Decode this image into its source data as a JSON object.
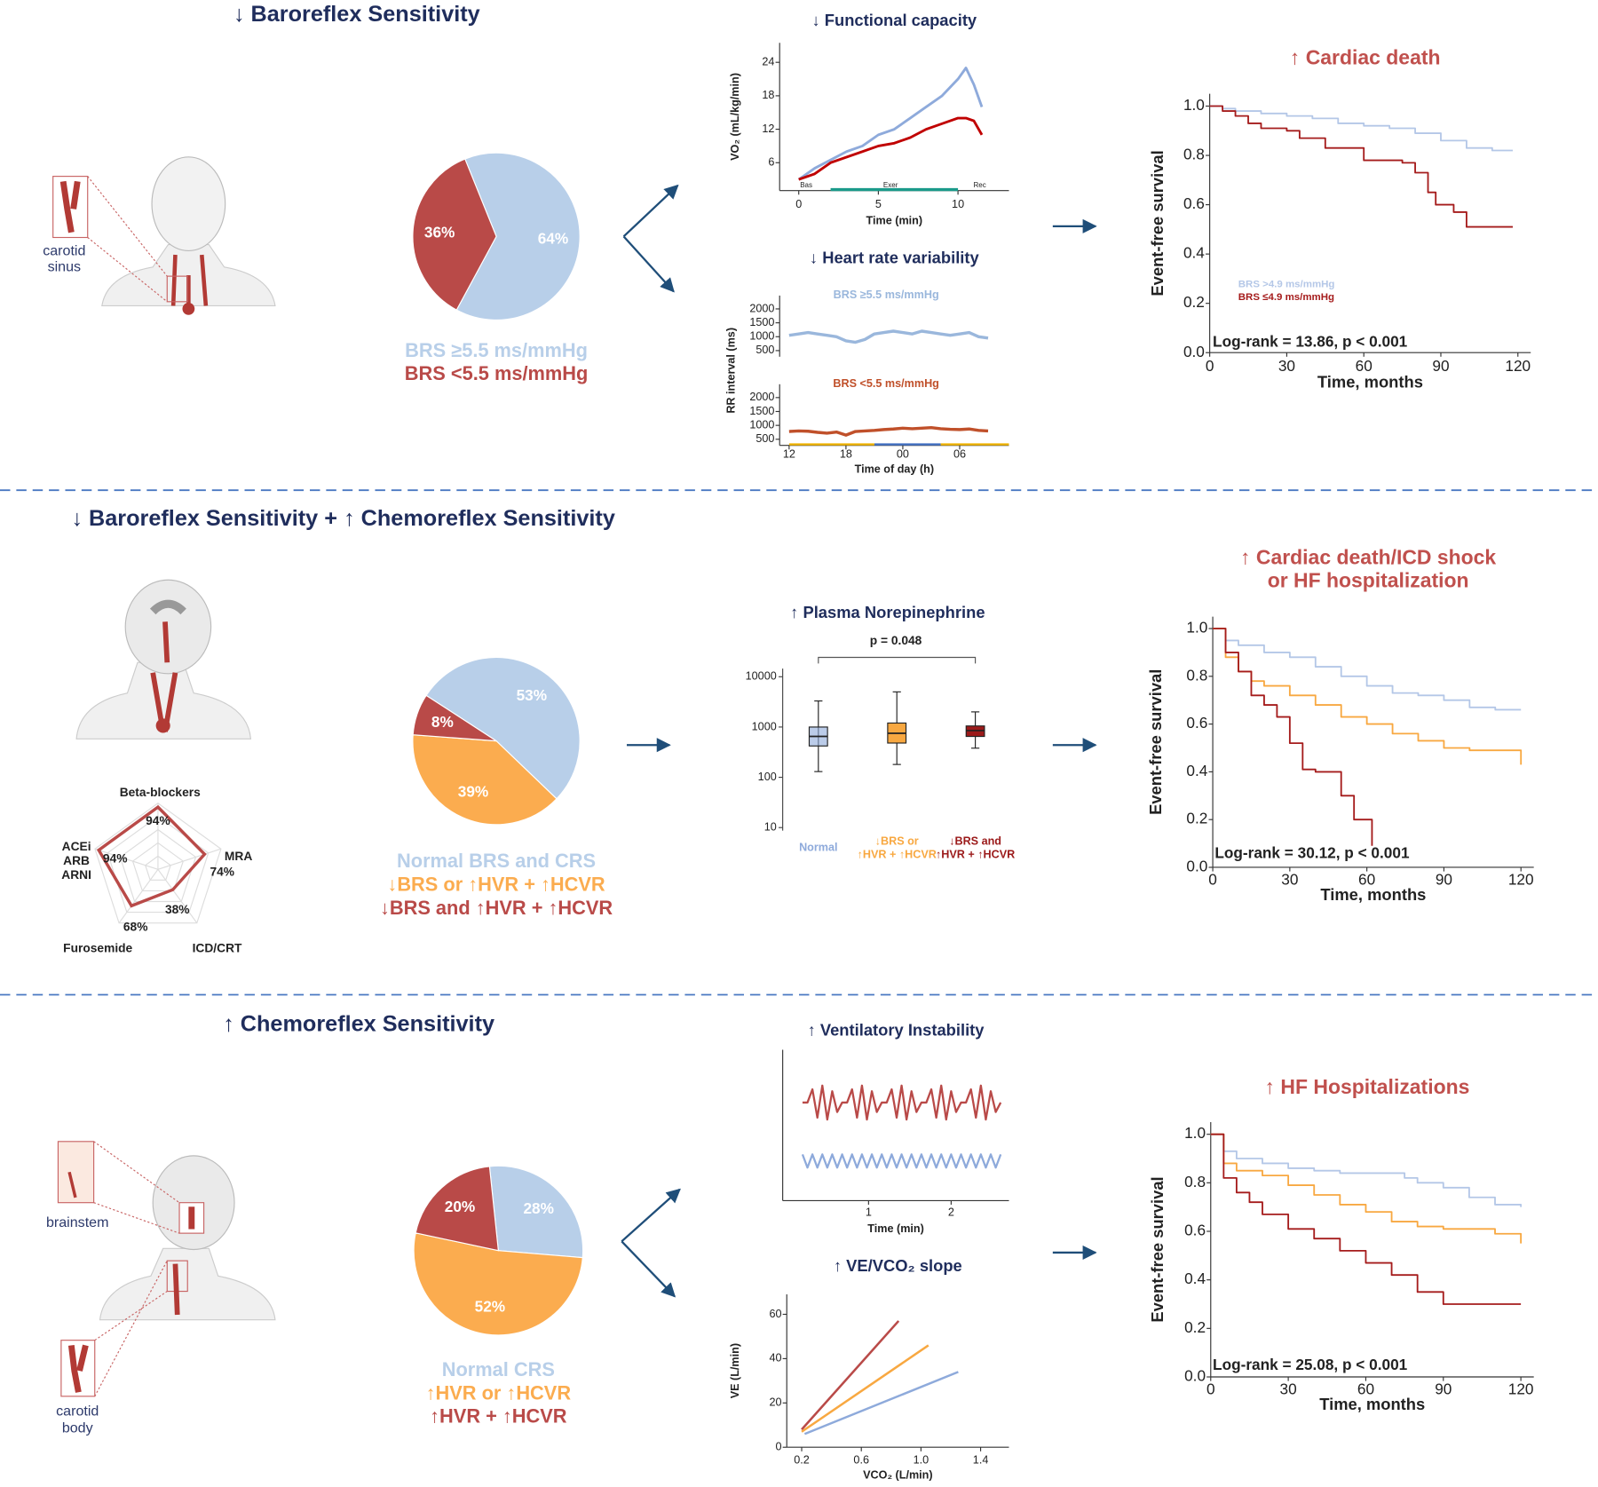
{
  "sections": [
    {
      "title": "↓ Baroreflex Sensitivity"
    },
    {
      "title": "↓ Baroreflex Sensitivity + ↑ Chemoreflex Sensitivity"
    },
    {
      "title": "↑ Chemoreflex Sensitivity"
    }
  ],
  "anatomy_labels": [
    "carotid\nsinus",
    "brainstem",
    "carotid\nbody"
  ],
  "chart_data": [
    {
      "type": "pie",
      "values": [
        64,
        36
      ],
      "value_labels": [
        "64%",
        "36%"
      ],
      "colors": [
        "#b8cfe9",
        "#b94a48"
      ],
      "labels": [
        "BRS ≥5.5 ms/mmHg",
        "BRS <5.5 ms/mmHg"
      ]
    },
    {
      "type": "line",
      "title": "↓ Functional capacity",
      "xlabel": "Time (min)",
      "ylabel": "VO₂ (mL/kg/min)",
      "xlim": [
        -1.2,
        13.2
      ],
      "ylim": [
        1,
        27.5
      ],
      "xticks": [
        0,
        5,
        10
      ],
      "yticks": [
        6,
        12,
        18,
        24
      ],
      "phases": [
        "Bas",
        "Exer",
        "Rec"
      ],
      "series": [
        {
          "color": "#8eaadb",
          "x": [
            0,
            1,
            2,
            3,
            4,
            5,
            6,
            7,
            8,
            9,
            10,
            10.5,
            11,
            11.5
          ],
          "values": [
            3,
            5,
            6.5,
            8,
            9,
            11,
            12,
            14,
            16,
            18,
            21,
            23,
            20,
            16
          ]
        },
        {
          "color": "#c00000",
          "x": [
            0,
            1,
            2,
            3,
            4,
            5,
            6,
            7,
            8,
            9,
            10,
            10.5,
            11,
            11.5
          ],
          "values": [
            3,
            4,
            6,
            7,
            8,
            9,
            9.5,
            10.5,
            12,
            13,
            14,
            14,
            13.5,
            11
          ]
        }
      ]
    },
    {
      "type": "line",
      "title": "↓ Heart rate variability",
      "xlabel": "Time of day (h)",
      "ylabel": "RR interval (ms)",
      "xlim": [
        11,
        35.2
      ],
      "ylim": [
        280,
        2480
      ],
      "xticks": [
        12,
        18,
        {
          "value": 24,
          "label": "00"
        },
        {
          "value": 30,
          "label": "06"
        }
      ],
      "yticks": [
        500,
        1000,
        1500,
        2000
      ],
      "series": [
        {
          "name": "BRS ≥5.5 ms/mmHg",
          "color": "#9ab7dc",
          "x": [
            12,
            13,
            14,
            15,
            16,
            17,
            18,
            19,
            20,
            21,
            22,
            23,
            24,
            25,
            26,
            27,
            28,
            29,
            30,
            31,
            32,
            33
          ],
          "values": [
            1050,
            1100,
            1150,
            1100,
            1050,
            1000,
            850,
            800,
            900,
            1100,
            1150,
            1200,
            1150,
            1100,
            1200,
            1150,
            1100,
            1050,
            1100,
            1150,
            1000,
            950
          ]
        },
        {
          "name": "BRS <5.5 ms/mmHg",
          "color": "#c0502a",
          "x": [
            12,
            13,
            14,
            15,
            16,
            17,
            18,
            19,
            20,
            21,
            22,
            23,
            24,
            25,
            26,
            27,
            28,
            29,
            30,
            31,
            32,
            33
          ],
          "values": [
            780,
            800,
            790,
            750,
            720,
            760,
            650,
            780,
            800,
            820,
            850,
            870,
            900,
            880,
            900,
            920,
            880,
            860,
            850,
            870,
            820,
            800
          ]
        }
      ]
    },
    {
      "type": "line",
      "drawstyle": "steps-post",
      "title": "↑ Cardiac death",
      "xlabel": "Time, months",
      "ylabel": "Event-free survival",
      "xlim": [
        0,
        125
      ],
      "ylim": [
        0,
        1.05
      ],
      "xticks": [
        0,
        30,
        60,
        90,
        120
      ],
      "yticks": [
        {
          "value": 0,
          "label": "0.0"
        },
        0.2,
        0.4,
        0.6,
        0.8,
        {
          "value": 1,
          "label": "1.0"
        }
      ],
      "annotation": "Log-rank = 13.86, p < 0.001",
      "series": [
        {
          "name": "BRS >4.9 ms/mmHg",
          "color": "#b4c7e7",
          "x": [
            0,
            5,
            10,
            20,
            30,
            40,
            50,
            60,
            70,
            80,
            90,
            100,
            110,
            118
          ],
          "values": [
            1,
            0.99,
            0.98,
            0.97,
            0.96,
            0.95,
            0.93,
            0.92,
            0.91,
            0.89,
            0.86,
            0.83,
            0.82,
            0.82
          ]
        },
        {
          "name": "BRS ≤4.9 ms/mmHg",
          "color": "#a51c1c",
          "x": [
            0,
            5,
            10,
            15,
            20,
            30,
            35,
            45,
            60,
            75,
            80,
            85,
            88,
            95,
            100,
            118
          ],
          "values": [
            1,
            0.98,
            0.96,
            0.93,
            0.91,
            0.9,
            0.87,
            0.83,
            0.78,
            0.77,
            0.73,
            0.65,
            0.6,
            0.57,
            0.51,
            0.51
          ]
        }
      ]
    },
    {
      "type": "radar",
      "categories": [
        "Beta-blockers",
        "MRA",
        "ICD/CRT",
        "Furosemide",
        "ACEi\nARB\nARNI"
      ],
      "values": [
        94,
        74,
        38,
        68,
        94
      ],
      "value_labels": [
        "94%",
        "74%",
        "38%",
        "68%",
        "94%"
      ],
      "rlim": [
        0,
        100
      ],
      "color": "#b94a48"
    },
    {
      "type": "pie",
      "values": [
        53,
        39,
        8
      ],
      "value_labels": [
        "53%",
        "39%",
        "8%"
      ],
      "colors": [
        "#b8cfe9",
        "#fbac4f",
        "#b94a48"
      ],
      "labels": [
        "Normal BRS and CRS",
        "↓BRS or ↑HVR + ↑HCVR",
        "↓BRS and ↑HVR + ↑HCVR"
      ]
    },
    {
      "type": "box",
      "title": "↑ Plasma Norepinephrine",
      "annotation": "p = 0.048",
      "yscale": "log",
      "ylim": [
        10,
        10000
      ],
      "yticks": [
        10,
        100,
        1000,
        10000
      ],
      "categories": [
        "Normal",
        "↓BRS or\n↑HVR + ↑HCVR",
        "↓BRS and\n↑HVR + ↑HCVR"
      ],
      "colors": [
        "#8eaadb",
        "#f8a841",
        "#9b1a1a"
      ],
      "values": [
        [
          130,
          420,
          650,
          1000,
          3300
        ],
        [
          180,
          480,
          750,
          1200,
          5000
        ],
        [
          380,
          650,
          850,
          1050,
          2000
        ]
      ]
    },
    {
      "type": "line",
      "drawstyle": "steps-post",
      "title": "↑ Cardiac death/ICD shock\nor HF hospitalization",
      "xlabel": "Time, months",
      "ylabel": "Event-free survival",
      "xlim": [
        0,
        125
      ],
      "ylim": [
        0,
        1.05
      ],
      "xticks": [
        0,
        30,
        60,
        90,
        120
      ],
      "yticks": [
        {
          "value": 0,
          "label": "0.0"
        },
        0.2,
        0.4,
        0.6,
        0.8,
        {
          "value": 1,
          "label": "1.0"
        }
      ],
      "annotation": "Log-rank = 30.12, p < 0.001",
      "series": [
        {
          "color": "#b4c7e7",
          "x": [
            0,
            5,
            10,
            20,
            30,
            40,
            50,
            60,
            70,
            80,
            90,
            100,
            110,
            120
          ],
          "values": [
            1,
            0.95,
            0.93,
            0.9,
            0.88,
            0.84,
            0.8,
            0.76,
            0.73,
            0.72,
            0.7,
            0.67,
            0.66,
            0.66
          ]
        },
        {
          "color": "#f8a841",
          "x": [
            0,
            5,
            10,
            15,
            20,
            30,
            40,
            50,
            60,
            70,
            80,
            90,
            100,
            110,
            120
          ],
          "values": [
            1,
            0.88,
            0.82,
            0.78,
            0.76,
            0.72,
            0.68,
            0.63,
            0.6,
            0.56,
            0.53,
            0.5,
            0.49,
            0.49,
            0.43
          ]
        },
        {
          "color": "#a51c1c",
          "x": [
            0,
            5,
            10,
            15,
            20,
            25,
            30,
            35,
            40,
            50,
            55,
            60,
            62
          ],
          "values": [
            1,
            0.9,
            0.82,
            0.72,
            0.68,
            0.63,
            0.52,
            0.41,
            0.4,
            0.3,
            0.2,
            0.2,
            0.09
          ]
        }
      ]
    },
    {
      "type": "pie",
      "values": [
        28,
        52,
        20
      ],
      "value_labels": [
        "28%",
        "52%",
        "20%"
      ],
      "colors": [
        "#b8cfe9",
        "#fbac4f",
        "#b94a48"
      ],
      "labels": [
        "Normal CRS",
        "↑HVR or ↑HCVR",
        "↑HVR + ↑HCVR"
      ]
    },
    {
      "type": "line",
      "title": "↑ Ventilatory Instability",
      "xlabel": "Time (min)",
      "xlim": [
        -0.04,
        2.7
      ],
      "ylim": [
        -4,
        4
      ],
      "xticks": [
        1,
        2
      ],
      "series": [
        {
          "color": "#b94a48",
          "x": [
            0.2,
            0.26,
            0.32,
            0.38,
            0.44,
            0.5,
            0.56,
            0.62,
            0.68,
            0.74,
            0.8,
            0.86,
            0.92,
            0.98,
            1.04,
            1.1,
            1.16,
            1.22,
            1.28,
            1.34,
            1.4,
            1.46,
            1.52,
            1.58,
            1.64,
            1.7,
            1.76,
            1.82,
            1.88,
            1.94,
            2,
            2.06,
            2.12,
            2.18,
            2.24,
            2.3,
            2.36,
            2.42,
            2.48,
            2.54,
            2.6
          ],
          "values": [
            1.2,
            1.2,
            1.9,
            0.4,
            2.1,
            0.3,
            1.8,
            0.7,
            1.2,
            1.2,
            1.9,
            0.4,
            2.1,
            0.3,
            1.8,
            0.7,
            1.2,
            1.2,
            1.9,
            0.4,
            2.1,
            0.3,
            1.8,
            0.7,
            1.2,
            1.2,
            1.9,
            0.4,
            2.1,
            0.3,
            1.8,
            0.7,
            1.2,
            1.2,
            1.9,
            0.4,
            2.1,
            0.3,
            1.8,
            0.7,
            1.2
          ]
        },
        {
          "color": "#8eaadb",
          "x": [
            0.2,
            0.26,
            0.32,
            0.38,
            0.44,
            0.5,
            0.56,
            0.62,
            0.68,
            0.74,
            0.8,
            0.86,
            0.92,
            0.98,
            1.04,
            1.1,
            1.16,
            1.22,
            1.28,
            1.34,
            1.4,
            1.46,
            1.52,
            1.58,
            1.64,
            1.7,
            1.76,
            1.82,
            1.88,
            1.94,
            2,
            2.06,
            2.12,
            2.18,
            2.24,
            2.3,
            2.36,
            2.42,
            2.48,
            2.54,
            2.6
          ],
          "values": [
            -1.55,
            -2.25,
            -1.55,
            -2.25,
            -1.55,
            -2.25,
            -1.55,
            -2.25,
            -1.55,
            -2.25,
            -1.55,
            -2.25,
            -1.55,
            -2.25,
            -1.55,
            -2.25,
            -1.55,
            -2.25,
            -1.55,
            -2.25,
            -1.55,
            -2.25,
            -1.55,
            -2.25,
            -1.55,
            -2.25,
            -1.55,
            -2.25,
            -1.55,
            -2.25,
            -1.55,
            -2.25,
            -1.55,
            -2.25,
            -1.55,
            -2.25,
            -1.55,
            -2.25,
            -1.55,
            -2.25,
            -1.55
          ]
        }
      ]
    },
    {
      "type": "line",
      "title": "↑ VE/VCO₂ slope",
      "xlabel": "VCO₂ (L/min)",
      "ylabel": "VE (L/min)",
      "xlim": [
        0.1,
        1.59
      ],
      "ylim": [
        0,
        69
      ],
      "xticks": [
        0.2,
        0.6,
        {
          "value": 1,
          "label": "1.0"
        },
        1.4
      ],
      "yticks": [
        0,
        20,
        40,
        60
      ],
      "series": [
        {
          "color": "#b94a48",
          "x": [
            0.2,
            0.85
          ],
          "values": [
            8,
            57
          ]
        },
        {
          "color": "#f8a841",
          "x": [
            0.2,
            1.05
          ],
          "values": [
            7,
            46
          ]
        },
        {
          "color": "#8eaadb",
          "x": [
            0.22,
            1.25
          ],
          "values": [
            6,
            34
          ]
        }
      ]
    },
    {
      "type": "line",
      "drawstyle": "steps-post",
      "title": "↑ HF Hospitalizations",
      "xlabel": "Time, months",
      "ylabel": "Event-free survival",
      "xlim": [
        0,
        125
      ],
      "ylim": [
        0,
        1.05
      ],
      "xticks": [
        0,
        30,
        60,
        90,
        120
      ],
      "yticks": [
        {
          "value": 0,
          "label": "0.0"
        },
        0.2,
        0.4,
        0.6,
        0.8,
        {
          "value": 1,
          "label": "1.0"
        }
      ],
      "annotation": "Log-rank = 25.08, p < 0.001",
      "series": [
        {
          "color": "#b4c7e7",
          "x": [
            0,
            5,
            10,
            20,
            30,
            40,
            50,
            60,
            75,
            80,
            90,
            100,
            110,
            120
          ],
          "values": [
            1,
            0.93,
            0.9,
            0.88,
            0.86,
            0.85,
            0.84,
            0.84,
            0.82,
            0.8,
            0.78,
            0.74,
            0.71,
            0.7
          ]
        },
        {
          "color": "#f8a841",
          "x": [
            0,
            5,
            10,
            20,
            30,
            40,
            50,
            60,
            70,
            80,
            90,
            100,
            110,
            120
          ],
          "values": [
            1,
            0.88,
            0.85,
            0.83,
            0.79,
            0.75,
            0.71,
            0.68,
            0.64,
            0.62,
            0.61,
            0.61,
            0.59,
            0.55
          ]
        },
        {
          "color": "#a51c1c",
          "x": [
            0,
            5,
            10,
            15,
            20,
            30,
            40,
            50,
            60,
            70,
            80,
            90,
            100,
            110,
            120
          ],
          "values": [
            1,
            0.82,
            0.76,
            0.72,
            0.67,
            0.61,
            0.57,
            0.52,
            0.47,
            0.42,
            0.35,
            0.3,
            0.3,
            0.3,
            0.3
          ]
        }
      ]
    }
  ]
}
